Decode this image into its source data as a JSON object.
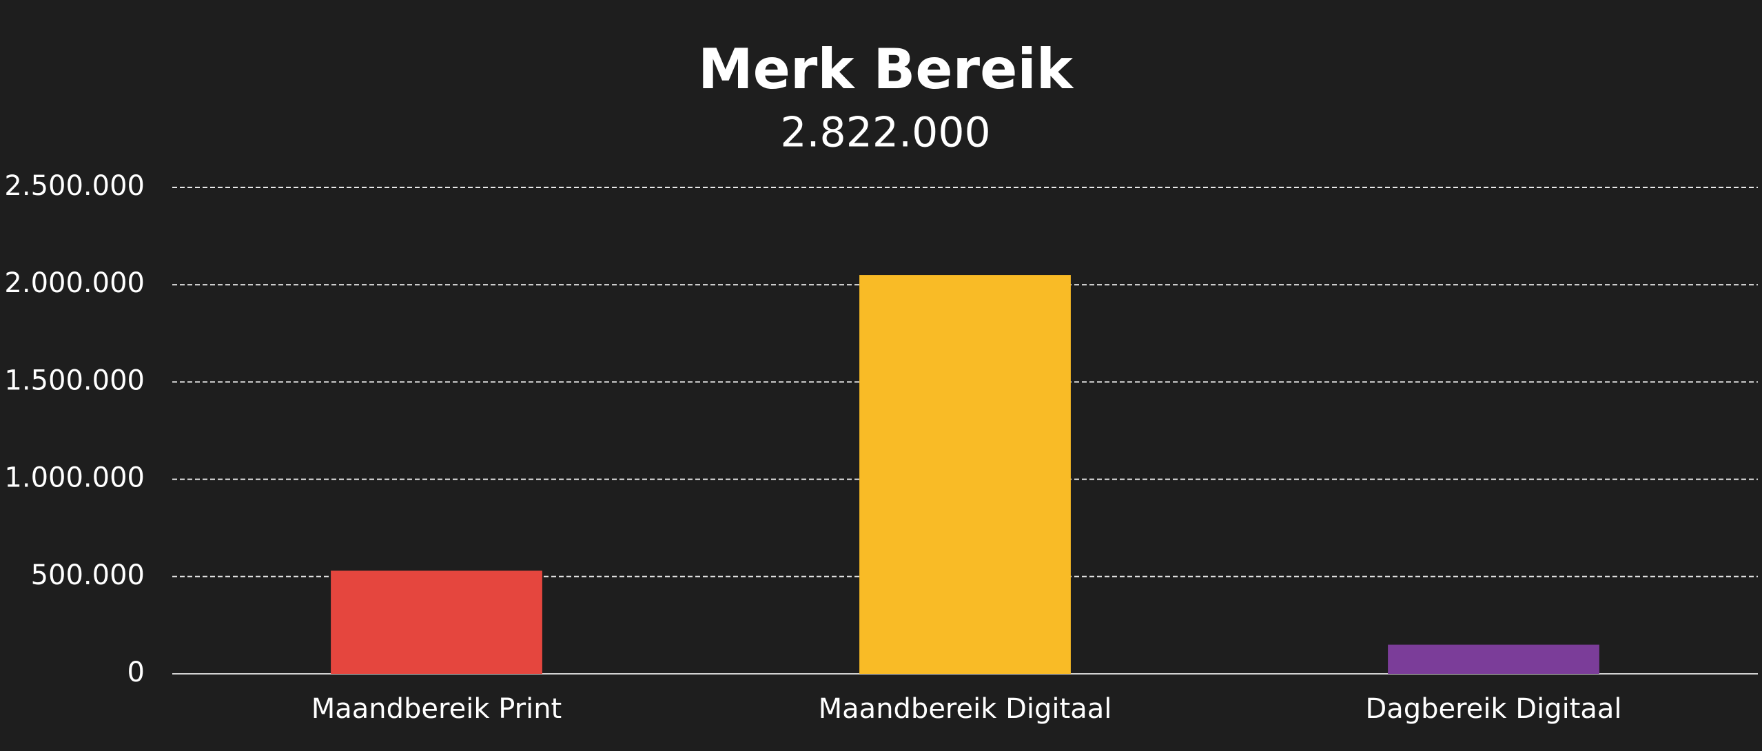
{
  "chart_data": {
    "type": "bar",
    "title": "Merk Bereik",
    "subtitle": "2.822.000",
    "categories": [
      "Maandbereik Print",
      "Maandbereik Digitaal",
      "Dagbereik Digitaal"
    ],
    "values": [
      530000,
      2050000,
      150000
    ],
    "colors": [
      "#e5463e",
      "#f9bb26",
      "#7b3d99"
    ],
    "ylim": [
      0,
      2500000
    ],
    "yticks": [
      {
        "value": 0,
        "label": "0"
      },
      {
        "value": 500000,
        "label": "500.000"
      },
      {
        "value": 1000000,
        "label": "1.000.000"
      },
      {
        "value": 1500000,
        "label": "1.500.000"
      },
      {
        "value": 2000000,
        "label": "2.000.000"
      },
      {
        "value": 2500000,
        "label": "2.500.000"
      }
    ],
    "grid": true
  }
}
